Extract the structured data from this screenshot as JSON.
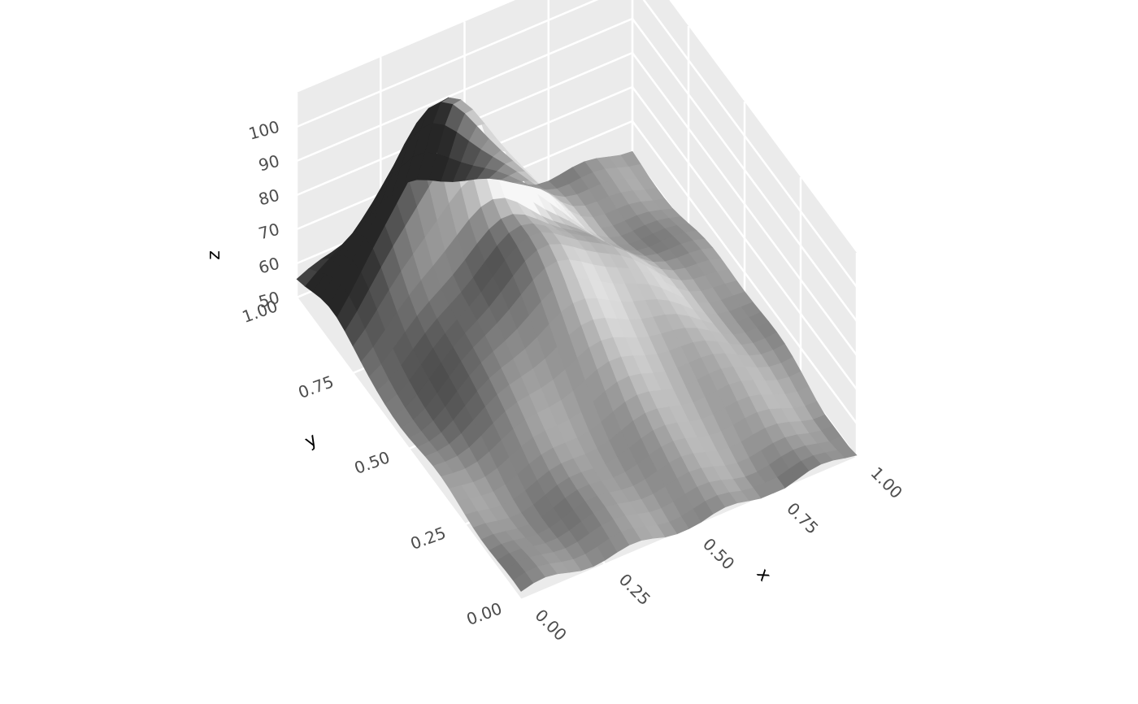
{
  "chart_data": {
    "type": "surface3d",
    "colormap": "grayscale",
    "x": {
      "label": "x",
      "range": [
        0,
        1
      ],
      "ticks": [
        0,
        0.25,
        0.5,
        0.75,
        1
      ],
      "tick_labels": [
        "0.00",
        "0.25",
        "0.50",
        "0.75",
        "1.00"
      ]
    },
    "y": {
      "label": "y",
      "range": [
        0,
        1
      ],
      "ticks": [
        0,
        0.25,
        0.5,
        0.75,
        1
      ],
      "tick_labels": [
        "0.00",
        "0.25",
        "0.50",
        "0.75",
        "1.00"
      ]
    },
    "z": {
      "label": "z",
      "range": [
        50,
        100
      ],
      "ticks": [
        50,
        60,
        70,
        80,
        90,
        100
      ],
      "tick_labels": [
        "50",
        "60",
        "70",
        "80",
        "90",
        "100"
      ]
    },
    "grid": true,
    "panel_color": "#ebebeb",
    "grid_color": "#ffffff"
  }
}
